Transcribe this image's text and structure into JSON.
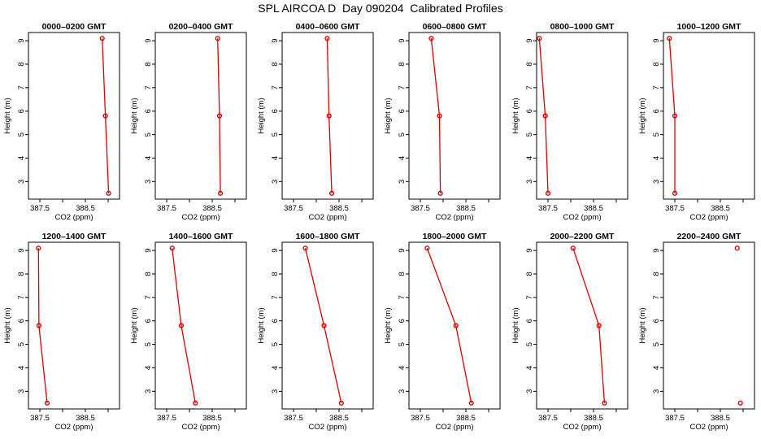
{
  "title": "SPL AIRCOA D  Day 090204  Calibrated Profiles",
  "colors": {
    "series": "#dd0000",
    "axis": "#000000",
    "background": "#ffffff"
  },
  "chart_data": [
    {
      "type": "line",
      "title": "0000–0200 GMT",
      "xlabel": "CO2 (ppm)",
      "ylabel": "Height (m)",
      "xlim": [
        387.25,
        389.25
      ],
      "ylim": [
        2.25,
        9.35
      ],
      "xticks": [
        387.5,
        388.0,
        388.5,
        389.0
      ],
      "xtick_labels": [
        "387.5",
        "",
        "388.5",
        ""
      ],
      "yticks": [
        3,
        4,
        5,
        6,
        7,
        8,
        9
      ],
      "x": [
        388.87,
        388.94,
        389.01
      ],
      "y": [
        9.1,
        5.8,
        2.5
      ],
      "connect": [
        [
          0,
          1
        ],
        [
          1,
          2
        ]
      ]
    },
    {
      "type": "line",
      "title": "0200–0400 GMT",
      "xlabel": "CO2 (ppm)",
      "ylabel": "Height (m)",
      "xlim": [
        387.25,
        389.25
      ],
      "ylim": [
        2.25,
        9.35
      ],
      "xticks": [
        387.5,
        388.0,
        388.5,
        389.0
      ],
      "xtick_labels": [
        "387.5",
        "",
        "388.5",
        ""
      ],
      "yticks": [
        3,
        4,
        5,
        6,
        7,
        8,
        9
      ],
      "x": [
        388.62,
        388.66,
        388.68
      ],
      "y": [
        9.1,
        5.8,
        2.5
      ],
      "connect": [
        [
          0,
          1
        ],
        [
          1,
          2
        ]
      ]
    },
    {
      "type": "line",
      "title": "0400–0600 GMT",
      "xlabel": "CO2 (ppm)",
      "ylabel": "Height (m)",
      "xlim": [
        387.25,
        389.25
      ],
      "ylim": [
        2.25,
        9.35
      ],
      "xticks": [
        387.5,
        388.0,
        388.5,
        389.0
      ],
      "xtick_labels": [
        "387.5",
        "",
        "388.5",
        ""
      ],
      "yticks": [
        3,
        4,
        5,
        6,
        7,
        8,
        9
      ],
      "x": [
        388.24,
        388.28,
        388.34
      ],
      "y": [
        9.1,
        5.8,
        2.5
      ],
      "connect": [
        [
          0,
          1
        ],
        [
          1,
          2
        ]
      ]
    },
    {
      "type": "line",
      "title": "0600–0800 GMT",
      "xlabel": "CO2 (ppm)",
      "ylabel": "Height (m)",
      "xlim": [
        387.25,
        389.25
      ],
      "ylim": [
        2.25,
        9.35
      ],
      "xticks": [
        387.5,
        388.0,
        388.5,
        389.0
      ],
      "xtick_labels": [
        "387.5",
        "",
        "388.5",
        ""
      ],
      "yticks": [
        3,
        4,
        5,
        6,
        7,
        8,
        9
      ],
      "x": [
        387.74,
        387.92,
        387.94
      ],
      "y": [
        9.1,
        5.8,
        2.5
      ],
      "connect": [
        [
          0,
          1
        ],
        [
          1,
          2
        ]
      ]
    },
    {
      "type": "line",
      "title": "0800–1000 GMT",
      "xlabel": "CO2 (ppm)",
      "ylabel": "Height (m)",
      "xlim": [
        387.25,
        389.25
      ],
      "ylim": [
        2.25,
        9.35
      ],
      "xticks": [
        387.5,
        388.0,
        388.5,
        389.0
      ],
      "xtick_labels": [
        "387.5",
        "",
        "388.5",
        ""
      ],
      "yticks": [
        3,
        4,
        5,
        6,
        7,
        8,
        9
      ],
      "x": [
        387.31,
        387.44,
        387.5
      ],
      "y": [
        9.1,
        5.8,
        2.5
      ],
      "connect": [
        [
          0,
          1
        ],
        [
          1,
          2
        ]
      ]
    },
    {
      "type": "line",
      "title": "1000–1200 GMT",
      "xlabel": "CO2 (ppm)",
      "ylabel": "Height (m)",
      "xlim": [
        387.25,
        389.25
      ],
      "ylim": [
        2.25,
        9.35
      ],
      "xticks": [
        387.5,
        388.0,
        388.5,
        389.0
      ],
      "xtick_labels": [
        "387.5",
        "",
        "388.5",
        ""
      ],
      "yticks": [
        3,
        4,
        5,
        6,
        7,
        8,
        9
      ],
      "x": [
        387.38,
        387.5,
        387.5
      ],
      "y": [
        9.1,
        5.8,
        2.5
      ],
      "connect": [
        [
          0,
          1
        ],
        [
          1,
          2
        ]
      ]
    },
    {
      "type": "line",
      "title": "1200–1400 GMT",
      "xlabel": "CO2 (ppm)",
      "ylabel": "Height (m)",
      "xlim": [
        387.25,
        389.25
      ],
      "ylim": [
        2.25,
        9.35
      ],
      "xticks": [
        387.5,
        388.0,
        388.5,
        389.0
      ],
      "xtick_labels": [
        "387.5",
        "",
        "388.5",
        ""
      ],
      "yticks": [
        3,
        4,
        5,
        6,
        7,
        8,
        9
      ],
      "x": [
        387.47,
        387.48,
        387.66
      ],
      "y": [
        9.1,
        5.8,
        2.5
      ],
      "connect": [
        [
          0,
          1
        ],
        [
          1,
          2
        ]
      ]
    },
    {
      "type": "line",
      "title": "1400–1600 GMT",
      "xlabel": "CO2 (ppm)",
      "ylabel": "Height (m)",
      "xlim": [
        387.25,
        389.25
      ],
      "ylim": [
        2.25,
        9.35
      ],
      "xticks": [
        387.5,
        388.0,
        388.5,
        389.0
      ],
      "xtick_labels": [
        "387.5",
        "",
        "388.5",
        ""
      ],
      "yticks": [
        3,
        4,
        5,
        6,
        7,
        8,
        9
      ],
      "x": [
        387.62,
        387.82,
        388.13
      ],
      "y": [
        9.1,
        5.8,
        2.5
      ],
      "connect": [
        [
          0,
          1
        ],
        [
          1,
          2
        ]
      ]
    },
    {
      "type": "line",
      "title": "1600–1800 GMT",
      "xlabel": "CO2 (ppm)",
      "ylabel": "Height (m)",
      "xlim": [
        387.25,
        389.25
      ],
      "ylim": [
        2.25,
        9.35
      ],
      "xticks": [
        387.5,
        388.0,
        388.5,
        389.0
      ],
      "xtick_labels": [
        "387.5",
        "",
        "388.5",
        ""
      ],
      "yticks": [
        3,
        4,
        5,
        6,
        7,
        8,
        9
      ],
      "x": [
        387.76,
        388.17,
        388.55
      ],
      "y": [
        9.1,
        5.8,
        2.5
      ],
      "connect": [
        [
          0,
          1
        ],
        [
          1,
          2
        ]
      ]
    },
    {
      "type": "line",
      "title": "1800–2000 GMT",
      "xlabel": "CO2 (ppm)",
      "ylabel": "Height (m)",
      "xlim": [
        387.25,
        389.25
      ],
      "ylim": [
        2.25,
        9.35
      ],
      "xticks": [
        387.5,
        388.0,
        388.5,
        389.0
      ],
      "xtick_labels": [
        "387.5",
        "",
        "388.5",
        ""
      ],
      "yticks": [
        3,
        4,
        5,
        6,
        7,
        8,
        9
      ],
      "x": [
        387.65,
        388.28,
        388.62
      ],
      "y": [
        9.1,
        5.8,
        2.5
      ],
      "connect": [
        [
          0,
          1
        ],
        [
          1,
          2
        ]
      ]
    },
    {
      "type": "line",
      "title": "2000–2200 GMT",
      "xlabel": "CO2 (ppm)",
      "ylabel": "Height (m)",
      "xlim": [
        387.25,
        389.25
      ],
      "ylim": [
        2.25,
        9.35
      ],
      "xticks": [
        387.5,
        388.0,
        388.5,
        389.0
      ],
      "xtick_labels": [
        "387.5",
        "",
        "388.5",
        ""
      ],
      "yticks": [
        3,
        4,
        5,
        6,
        7,
        8,
        9
      ],
      "x": [
        388.05,
        388.62,
        388.74
      ],
      "y": [
        9.1,
        5.8,
        2.5
      ],
      "connect": [
        [
          0,
          1
        ],
        [
          1,
          2
        ]
      ]
    },
    {
      "type": "scatter",
      "title": "2200–2400 GMT",
      "xlabel": "CO2 (ppm)",
      "ylabel": "Height (m)",
      "xlim": [
        387.25,
        389.25
      ],
      "ylim": [
        2.25,
        9.35
      ],
      "xticks": [
        387.5,
        388.0,
        388.5,
        389.0
      ],
      "xtick_labels": [
        "387.5",
        "",
        "388.5",
        ""
      ],
      "yticks": [
        3,
        4,
        5,
        6,
        7,
        8,
        9
      ],
      "x": [
        388.87,
        388.94
      ],
      "y": [
        9.1,
        2.5
      ],
      "connect": []
    }
  ]
}
